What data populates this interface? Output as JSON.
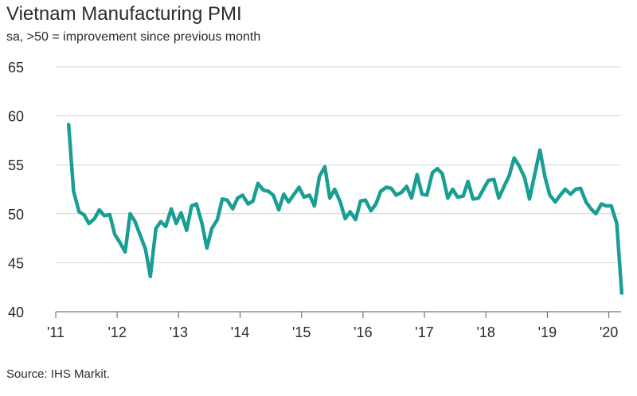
{
  "chart_data": {
    "type": "line",
    "title": "Vietnam Manufacturing PMI",
    "subtitle": "sa, >50 = improvement since previous month",
    "source": "Source: IHS Markit.",
    "xlabel": "",
    "ylabel": "",
    "ylim": [
      40,
      65
    ],
    "yticks": [
      40,
      45,
      50,
      55,
      60,
      65
    ],
    "xlim": [
      2011.0,
      2020.2
    ],
    "xticks": [
      {
        "value": 2011,
        "label": "'11"
      },
      {
        "value": 2012,
        "label": "'12"
      },
      {
        "value": 2013,
        "label": "'13"
      },
      {
        "value": 2014,
        "label": "'14"
      },
      {
        "value": 2015,
        "label": "'15"
      },
      {
        "value": 2016,
        "label": "'16"
      },
      {
        "value": 2017,
        "label": "'17"
      },
      {
        "value": 2018,
        "label": "'18"
      },
      {
        "value": 2019,
        "label": "'19"
      },
      {
        "value": 2020,
        "label": "'20"
      }
    ],
    "grid": true,
    "line_color": "#1a9e93",
    "series": [
      {
        "name": "",
        "x": [
          2011.21,
          2011.29,
          2011.38,
          2011.46,
          2011.54,
          2011.63,
          2011.71,
          2011.79,
          2011.88,
          2011.96,
          2012.04,
          2012.13,
          2012.21,
          2012.29,
          2012.38,
          2012.46,
          2012.54,
          2012.63,
          2012.71,
          2012.79,
          2012.88,
          2012.96,
          2013.04,
          2013.13,
          2013.21,
          2013.29,
          2013.38,
          2013.46,
          2013.54,
          2013.63,
          2013.71,
          2013.79,
          2013.88,
          2013.96,
          2014.04,
          2014.13,
          2014.21,
          2014.29,
          2014.38,
          2014.46,
          2014.54,
          2014.63,
          2014.71,
          2014.79,
          2014.88,
          2014.96,
          2015.04,
          2015.13,
          2015.21,
          2015.29,
          2015.38,
          2015.46,
          2015.54,
          2015.63,
          2015.71,
          2015.79,
          2015.88,
          2015.96,
          2016.04,
          2016.13,
          2016.21,
          2016.29,
          2016.38,
          2016.46,
          2016.54,
          2016.63,
          2016.71,
          2016.79,
          2016.88,
          2016.96,
          2017.04,
          2017.13,
          2017.21,
          2017.29,
          2017.38,
          2017.46,
          2017.54,
          2017.63,
          2017.71,
          2017.79,
          2017.88,
          2017.96,
          2018.04,
          2018.13,
          2018.21,
          2018.29,
          2018.38,
          2018.46,
          2018.54,
          2018.63,
          2018.71,
          2018.79,
          2018.88,
          2018.96,
          2019.04,
          2019.13,
          2019.21,
          2019.29,
          2019.38,
          2019.46,
          2019.54,
          2019.63,
          2019.71,
          2019.79,
          2019.88,
          2019.96,
          2020.04,
          2020.13,
          2020.21
        ],
        "values": [
          59.1,
          52.3,
          50.2,
          49.9,
          49.0,
          49.5,
          50.4,
          49.8,
          49.9,
          47.9,
          47.1,
          46.1,
          50.0,
          49.2,
          47.7,
          46.4,
          43.6,
          48.5,
          49.2,
          48.7,
          50.5,
          49.0,
          50.1,
          48.3,
          50.8,
          51.0,
          49.0,
          46.5,
          48.5,
          49.4,
          51.5,
          51.4,
          50.5,
          51.6,
          51.9,
          51.0,
          51.3,
          53.1,
          52.4,
          52.3,
          51.9,
          50.4,
          52.0,
          51.2,
          52.0,
          52.7,
          51.7,
          51.9,
          50.8,
          53.8,
          54.8,
          51.6,
          52.5,
          51.2,
          49.5,
          50.2,
          49.4,
          51.3,
          51.4,
          50.3,
          51.0,
          52.3,
          52.7,
          52.6,
          51.9,
          52.2,
          52.8,
          51.6,
          54.0,
          52.0,
          51.9,
          54.2,
          54.6,
          54.1,
          51.6,
          52.5,
          51.7,
          51.8,
          53.3,
          51.5,
          51.6,
          52.5,
          53.4,
          53.5,
          51.6,
          52.7,
          53.9,
          55.7,
          54.9,
          53.7,
          51.5,
          53.9,
          56.5,
          53.8,
          51.9,
          51.2,
          51.9,
          52.5,
          52.0,
          52.5,
          52.6,
          51.2,
          50.5,
          50.0,
          51.0,
          50.8,
          50.8,
          49.0,
          41.9
        ]
      }
    ]
  }
}
